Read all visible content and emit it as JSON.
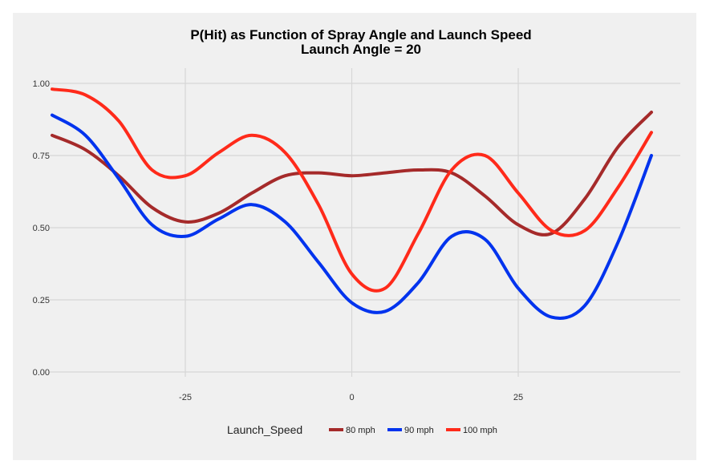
{
  "chart_data": {
    "type": "line",
    "title": "P(Hit) as Function of Spray Angle and Launch Speed",
    "subtitle": "Launch Angle =  20",
    "xlabel": "",
    "ylabel": "",
    "xlim": [
      -45,
      45
    ],
    "ylim": [
      0,
      1
    ],
    "x_ticks": [
      -25,
      0,
      25
    ],
    "x_tick_labels": [
      "-25",
      "0",
      "25"
    ],
    "y_ticks": [
      0,
      0.25,
      0.5,
      0.75,
      1.0
    ],
    "y_tick_labels": [
      "0.00",
      "0.25",
      "0.50",
      "0.75",
      "1.00"
    ],
    "grid": true,
    "legend_title": "Launch_Speed",
    "legend_position": "bottom",
    "series": [
      {
        "name": "80 mph",
        "color": "#a52a2a",
        "x": [
          -45,
          -40,
          -35,
          -30,
          -25,
          -20,
          -15,
          -10,
          -5,
          0,
          5,
          10,
          15,
          20,
          25,
          30,
          35,
          40,
          45
        ],
        "values": [
          0.82,
          0.77,
          0.68,
          0.57,
          0.52,
          0.55,
          0.62,
          0.68,
          0.69,
          0.68,
          0.69,
          0.7,
          0.69,
          0.61,
          0.51,
          0.48,
          0.6,
          0.78,
          0.9
        ]
      },
      {
        "name": "90 mph",
        "color": "#0033ee",
        "x": [
          -45,
          -40,
          -35,
          -30,
          -25,
          -20,
          -15,
          -10,
          -5,
          0,
          5,
          10,
          15,
          20,
          25,
          30,
          35,
          40,
          45
        ],
        "values": [
          0.89,
          0.82,
          0.67,
          0.51,
          0.47,
          0.53,
          0.58,
          0.52,
          0.38,
          0.24,
          0.21,
          0.31,
          0.47,
          0.46,
          0.29,
          0.19,
          0.23,
          0.45,
          0.75
        ]
      },
      {
        "name": "100 mph",
        "color": "#ff2a1a",
        "x": [
          -45,
          -40,
          -35,
          -30,
          -25,
          -20,
          -15,
          -10,
          -5,
          0,
          5,
          10,
          15,
          20,
          25,
          30,
          35,
          40,
          45
        ],
        "values": [
          0.98,
          0.96,
          0.87,
          0.7,
          0.68,
          0.76,
          0.82,
          0.76,
          0.58,
          0.34,
          0.29,
          0.48,
          0.7,
          0.75,
          0.62,
          0.49,
          0.49,
          0.64,
          0.83
        ]
      }
    ]
  }
}
